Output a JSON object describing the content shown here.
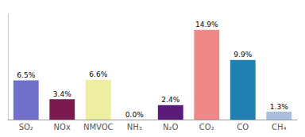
{
  "chart_data": {
    "type": "bar",
    "categories": [
      "SO₂",
      "NOx",
      "NMVOC",
      "NH₃",
      "N₂O",
      "CO₂",
      "CO",
      "CH₄"
    ],
    "values": [
      6.5,
      3.4,
      6.6,
      0.0,
      2.4,
      14.9,
      9.9,
      1.3
    ],
    "value_labels": [
      "6.5%",
      "3.4%",
      "6.6%",
      "0.0%",
      "2.4%",
      "14.9%",
      "9.9%",
      "1.3%"
    ],
    "colors": [
      "#7070cc",
      "#7a1a50",
      "#eeeea0",
      "#d8d8d8",
      "#5a1a7a",
      "#f08888",
      "#2080b0",
      "#aabee0"
    ],
    "ylim": [
      0,
      17.5
    ],
    "grid": false,
    "data_labels": true,
    "tick_labels": "x"
  }
}
